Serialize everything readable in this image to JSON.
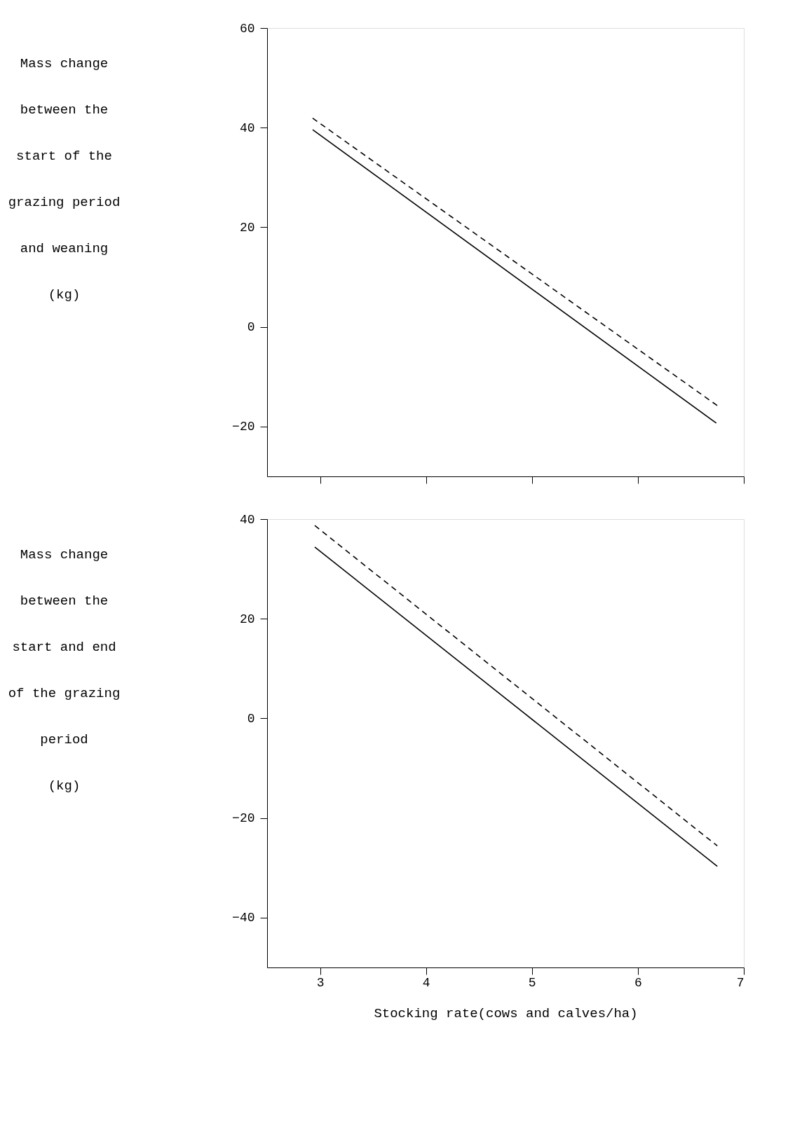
{
  "chart_data": [
    {
      "type": "line",
      "ylabel": "Mass change between the start of the grazing period and weaning (kg)",
      "xlim": [
        2.5,
        7
      ],
      "xticks": [
        3,
        4,
        5,
        6,
        7
      ],
      "ylim": [
        -30,
        60
      ],
      "yticks": [
        -20,
        0,
        20,
        40,
        60
      ],
      "tick_labels": "y",
      "grid": false,
      "series": [
        {
          "color": "#000000",
          "line_style": "solid",
          "x": [
            2.93,
            6.74
          ],
          "values": [
            39.6,
            -19.3
          ]
        },
        {
          "color": "#000000",
          "line_style": "dashed",
          "x": [
            2.93,
            6.75
          ],
          "values": [
            41.9,
            -15.8
          ]
        }
      ]
    },
    {
      "type": "line",
      "ylabel": "Mass change between the start and end of the grazing period (kg)",
      "xlabel": "Stocking rate(cows and calves/ha)",
      "xlim": [
        2.5,
        7
      ],
      "xticks": [
        3,
        4,
        5,
        6,
        7
      ],
      "ylim": [
        -50,
        40
      ],
      "yticks": [
        -40,
        -20,
        0,
        20,
        40
      ],
      "grid": false,
      "series": [
        {
          "color": "#000000",
          "line_style": "solid",
          "x": [
            2.95,
            6.75
          ],
          "values": [
            34.4,
            -29.7
          ]
        },
        {
          "color": "#000000",
          "line_style": "dashed",
          "x": [
            2.95,
            6.75
          ],
          "values": [
            38.7,
            -25.6
          ]
        }
      ]
    }
  ]
}
